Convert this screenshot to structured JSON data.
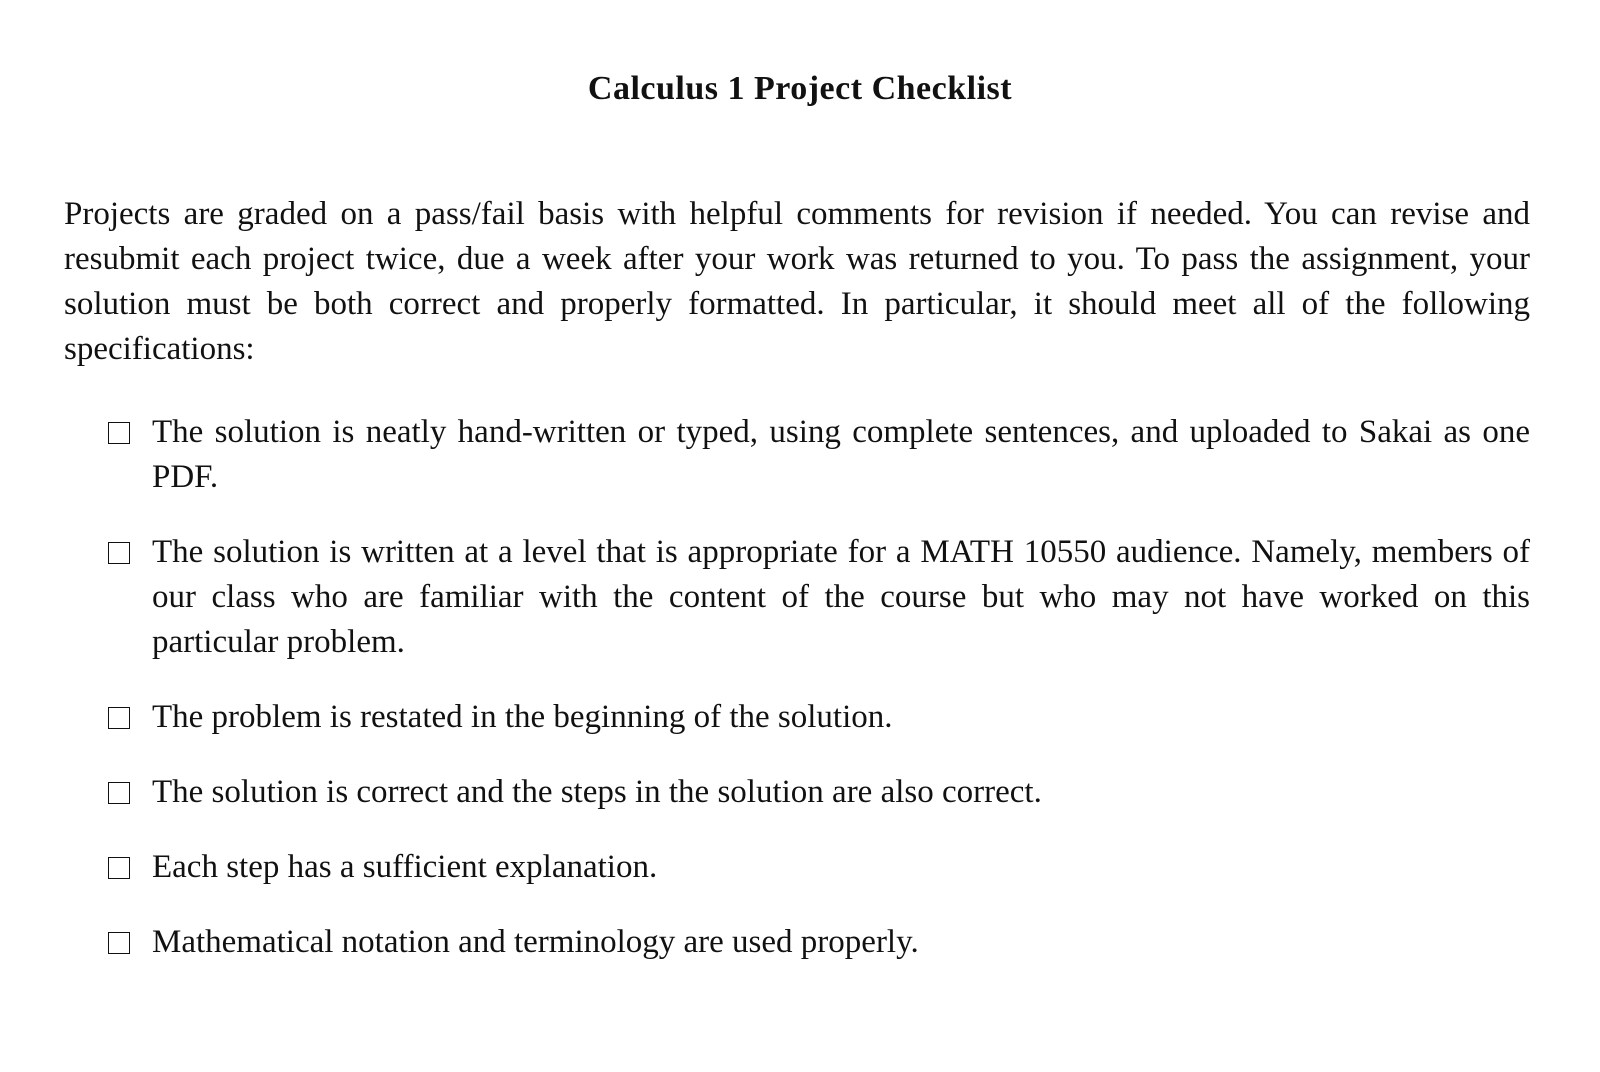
{
  "title": "Calculus 1 Project Checklist",
  "intro": "Projects are graded on a pass/fail basis with helpful comments for revision if needed. You can revise and resubmit each project twice, due a week after your work was returned to you. To pass the assignment, your solution must be both correct and properly formatted. In particular, it should meet all of the following specifications:",
  "checklist": [
    {
      "text": "The solution is neatly hand-written or typed, using complete sentences, and uploaded to Sakai as one PDF.",
      "checked": false
    },
    {
      "text": "The solution is written at a level that is appropriate for a MATH 10550 audience. Namely, members of our class who are familiar with the content of the course but who may not have worked on this particular problem.",
      "checked": false
    },
    {
      "text": "The problem is restated in the beginning of the solution.",
      "checked": false
    },
    {
      "text": "The solution is correct and the steps in the solution are also correct.",
      "checked": false
    },
    {
      "text": "Each step has a sufficient explanation.",
      "checked": false
    },
    {
      "text": "Mathematical notation and terminology are used properly.",
      "checked": false
    }
  ]
}
